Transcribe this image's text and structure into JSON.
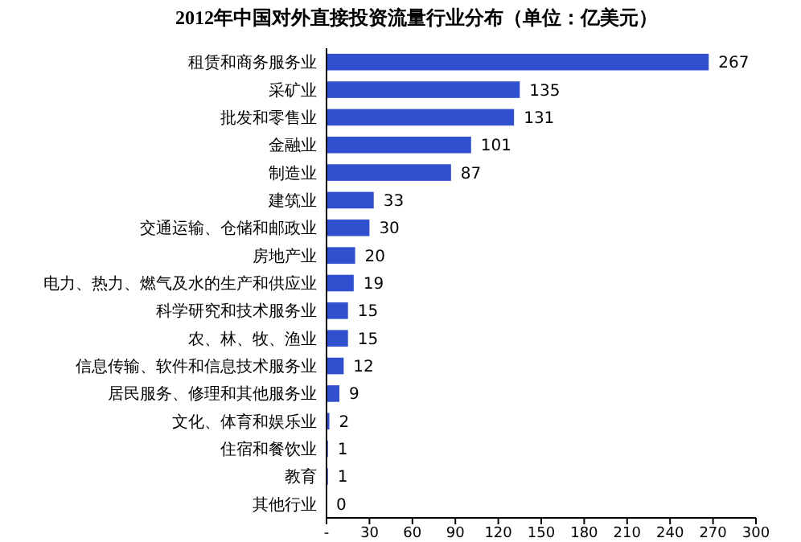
{
  "chart_data": {
    "type": "bar",
    "orientation": "horizontal",
    "title": "2012年中国对外直接投资流量行业分布（单位：亿美元）",
    "categories": [
      "租赁和商务服务业",
      "采矿业",
      "批发和零售业",
      "金融业",
      "制造业",
      "建筑业",
      "交通运输、仓储和邮政业",
      "房地产业",
      "电力、热力、燃气及水的生产和供应业",
      "科学研究和技术服务业",
      "农、林、牧、渔业",
      "信息传输、软件和信息技术服务业",
      "居民服务、修理和其他服务业",
      "文化、体育和娱乐业",
      "住宿和餐饮业",
      "教育",
      "其他行业"
    ],
    "values": [
      267,
      135,
      131,
      101,
      87,
      33,
      30,
      20,
      19,
      15,
      15,
      12,
      9,
      2,
      1,
      1,
      0
    ],
    "color": "#3050d0",
    "xlim": [
      0,
      300
    ],
    "xticks": [
      {
        "value": 0,
        "label": "-"
      },
      30,
      60,
      90,
      120,
      150,
      180,
      210,
      240,
      270,
      300
    ],
    "data_labels": true
  }
}
